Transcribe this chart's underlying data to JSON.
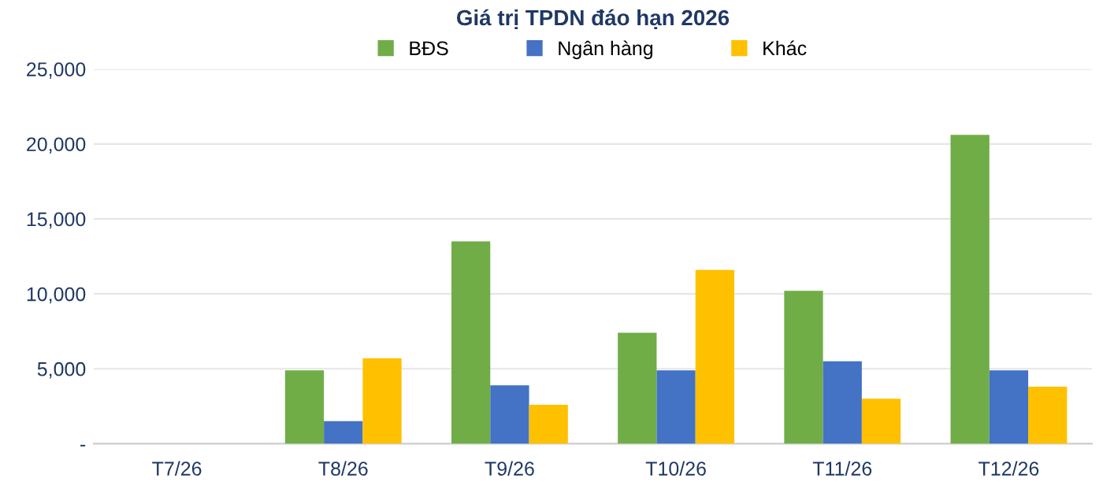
{
  "chart_data": {
    "type": "bar",
    "title": "Giá trị TPDN đáo hạn 2026",
    "categories": [
      "T7/26",
      "T8/26",
      "T9/26",
      "T10/26",
      "T11/26",
      "T12/26"
    ],
    "series": [
      {
        "name": "BĐS",
        "color": "#70ad47",
        "values": [
          null,
          4900,
          13500,
          7400,
          10200,
          20600
        ]
      },
      {
        "name": "Ngân hàng",
        "color": "#4472c4",
        "values": [
          null,
          1500,
          3900,
          4900,
          5500,
          4900
        ]
      },
      {
        "name": "Khác",
        "color": "#ffc000",
        "values": [
          null,
          5700,
          2600,
          11600,
          3000,
          3800
        ]
      }
    ],
    "ylim": [
      0,
      25000
    ],
    "yticks": [
      {
        "value": 0,
        "label": "-"
      },
      {
        "value": 5000,
        "label": "5,000"
      },
      {
        "value": 10000,
        "label": "10,000"
      },
      {
        "value": 15000,
        "label": "15,000"
      },
      {
        "value": 20000,
        "label": "20,000"
      },
      {
        "value": 25000,
        "label": "25,000"
      }
    ],
    "grid": "y",
    "legend": "top"
  }
}
